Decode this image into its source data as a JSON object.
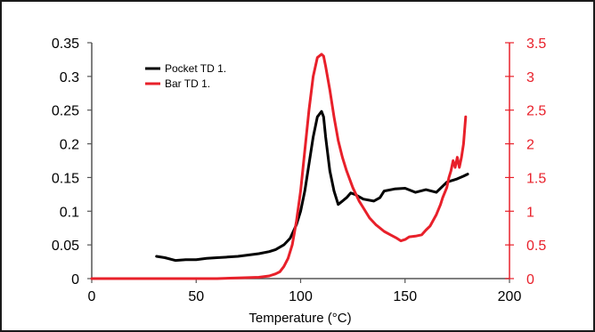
{
  "chart_data": {
    "type": "line",
    "title": "",
    "xlabel": "Temperature (°C)",
    "ylabel_left": "",
    "ylabel_right": "",
    "xlim": [
      0,
      200
    ],
    "ylim_left": [
      0,
      0.35
    ],
    "ylim_right": [
      0,
      3.5
    ],
    "x_ticks": [
      "0",
      "50",
      "100",
      "150",
      "200"
    ],
    "y_left_ticks": [
      "0",
      "0.05",
      "0.1",
      "0.15",
      "0.2",
      "0.25",
      "0.3",
      "0.35"
    ],
    "y_right_ticks": [
      "0",
      "0.5",
      "1",
      "1.5",
      "2",
      "2.5",
      "3",
      "3.5"
    ],
    "grid": false,
    "legend_position": "top-left",
    "series": [
      {
        "name": "Pocket TD 1.",
        "axis": "left",
        "color": "#000000",
        "x": [
          31,
          35,
          40,
          45,
          50,
          55,
          60,
          65,
          70,
          75,
          80,
          85,
          88,
          92,
          95,
          98,
          100,
          102,
          104,
          106,
          108,
          110,
          111,
          112,
          114,
          116,
          118,
          120,
          122,
          124,
          126,
          130,
          135,
          138,
          140,
          145,
          150,
          155,
          160,
          165,
          170,
          175,
          178,
          180
        ],
        "y": [
          0.033,
          0.031,
          0.027,
          0.028,
          0.028,
          0.03,
          0.031,
          0.032,
          0.033,
          0.035,
          0.037,
          0.04,
          0.043,
          0.05,
          0.06,
          0.08,
          0.1,
          0.13,
          0.17,
          0.21,
          0.24,
          0.248,
          0.24,
          0.21,
          0.16,
          0.13,
          0.11,
          0.115,
          0.12,
          0.127,
          0.125,
          0.118,
          0.115,
          0.12,
          0.13,
          0.133,
          0.134,
          0.128,
          0.132,
          0.128,
          0.143,
          0.148,
          0.152,
          0.155
        ]
      },
      {
        "name": "Bar TD 1.",
        "axis": "right",
        "color": "#e8202a",
        "x": [
          0,
          30,
          60,
          70,
          80,
          85,
          88,
          90,
          92,
          94,
          96,
          98,
          100,
          102,
          104,
          106,
          108,
          110,
          111,
          112,
          114,
          116,
          118,
          120,
          122,
          125,
          128,
          130,
          133,
          136,
          140,
          143,
          146,
          148,
          150,
          152,
          155,
          158,
          160,
          162,
          165,
          167,
          168,
          170,
          171,
          172,
          173,
          174,
          175,
          176,
          177,
          178,
          179
        ],
        "y": [
          0,
          0,
          0,
          0.01,
          0.02,
          0.04,
          0.07,
          0.1,
          0.18,
          0.3,
          0.5,
          0.85,
          1.3,
          1.9,
          2.5,
          3.0,
          3.28,
          3.33,
          3.3,
          3.15,
          2.8,
          2.4,
          2.05,
          1.8,
          1.6,
          1.35,
          1.15,
          1.05,
          0.9,
          0.8,
          0.7,
          0.65,
          0.6,
          0.56,
          0.58,
          0.62,
          0.63,
          0.65,
          0.72,
          0.78,
          0.95,
          1.1,
          1.2,
          1.35,
          1.5,
          1.6,
          1.75,
          1.65,
          1.8,
          1.65,
          1.8,
          2.0,
          2.4
        ]
      }
    ]
  }
}
